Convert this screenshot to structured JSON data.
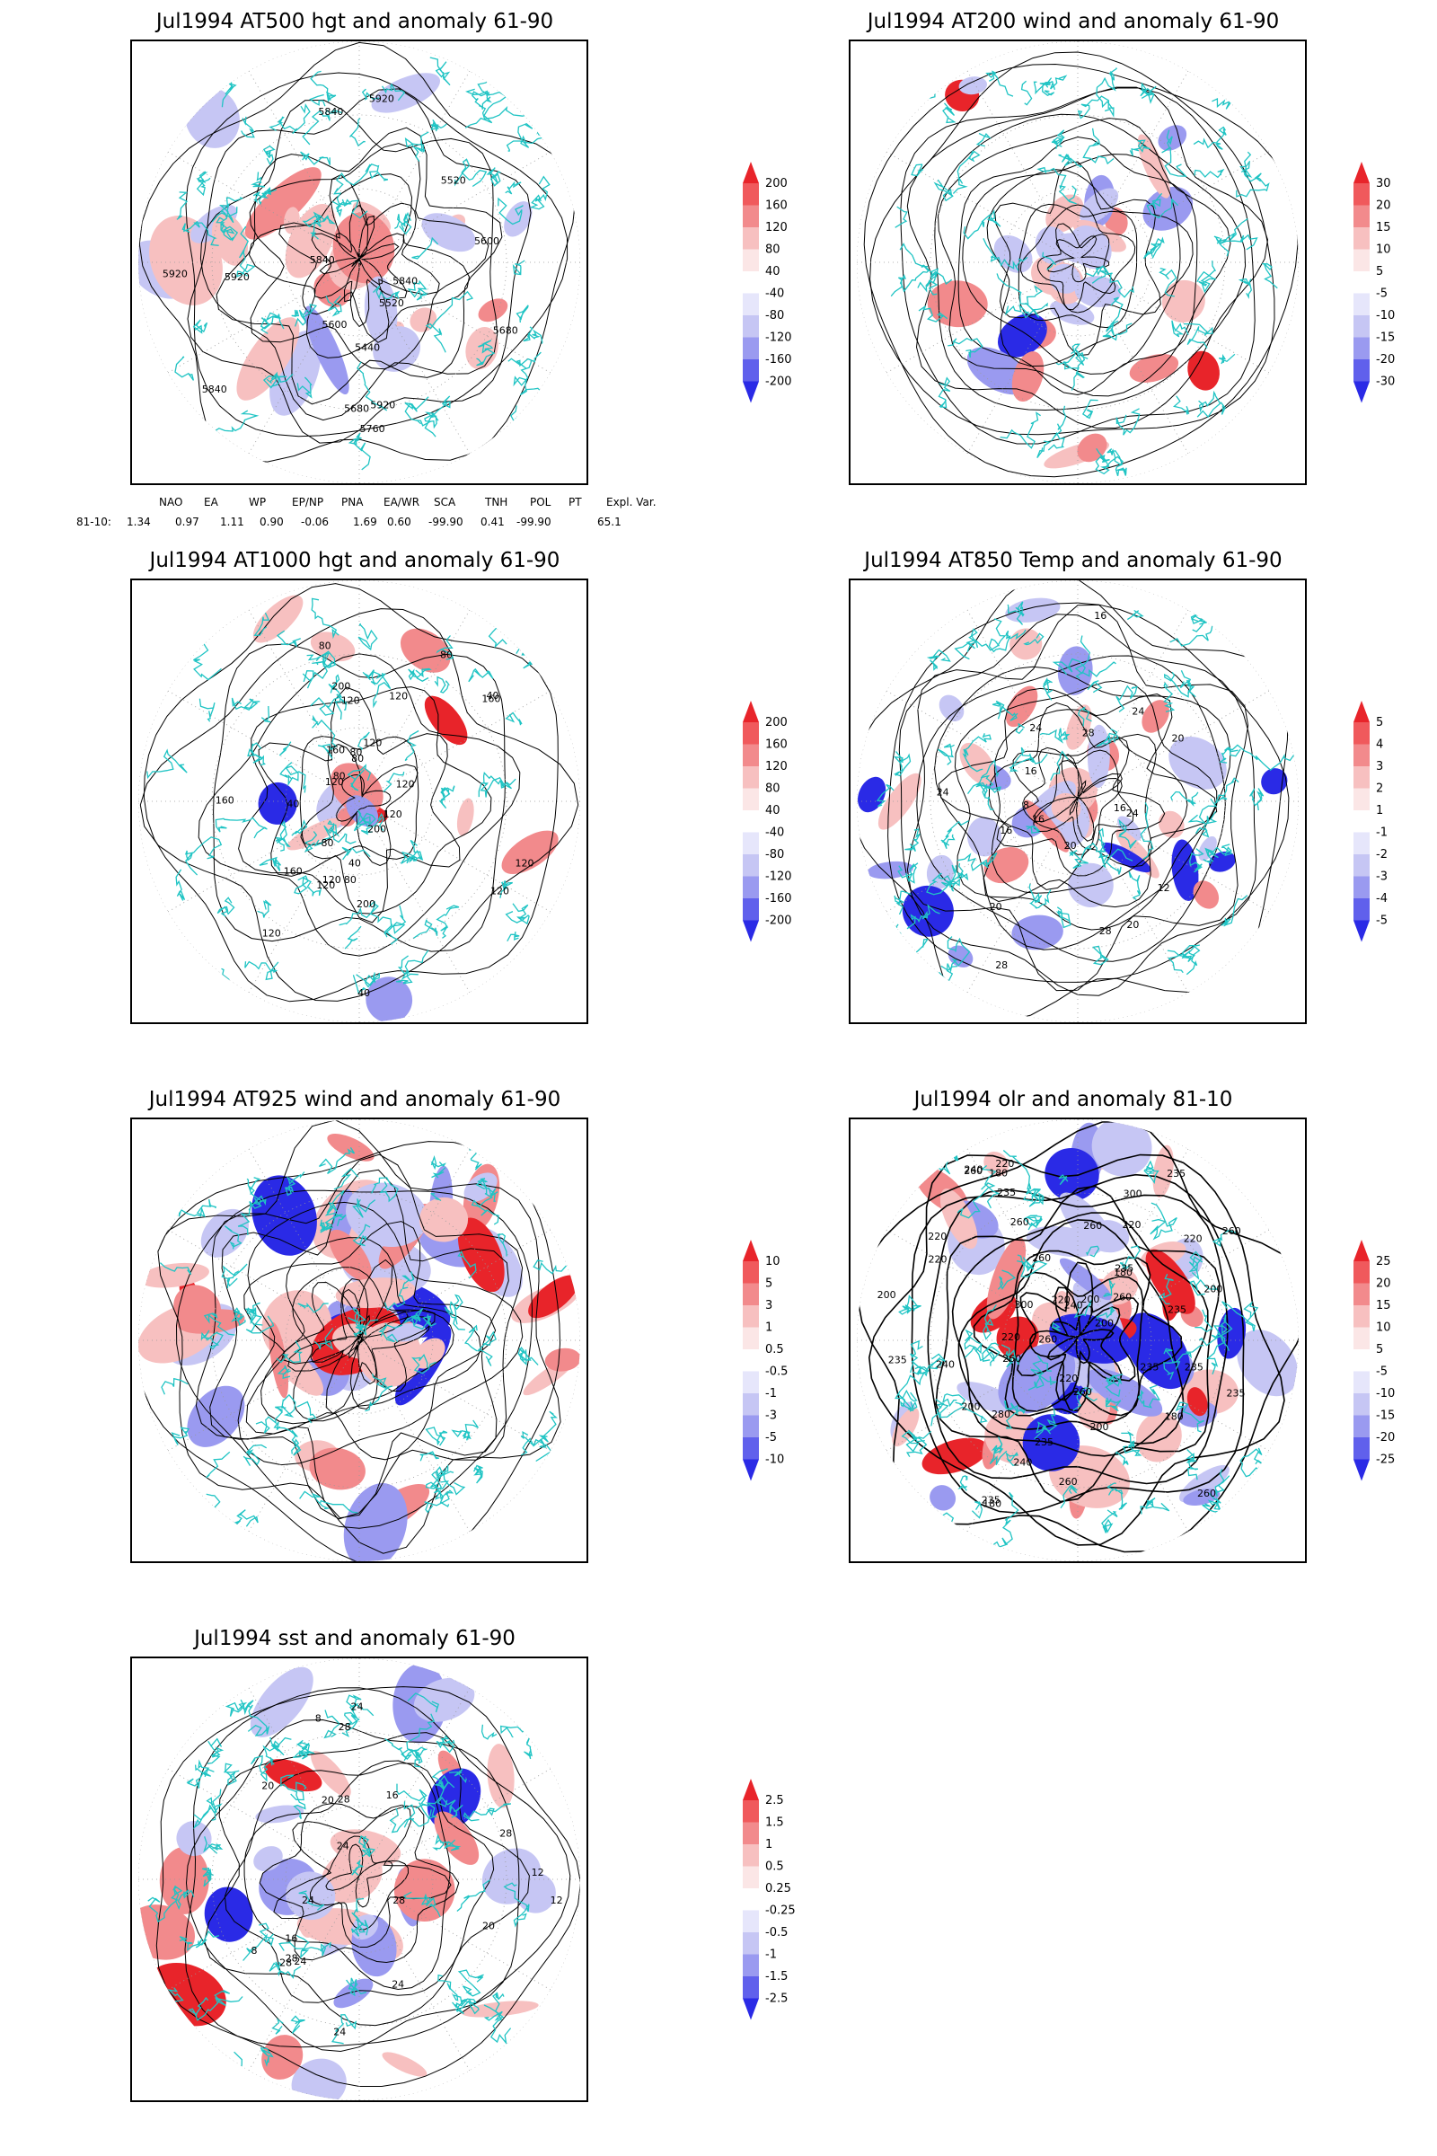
{
  "chart_data": [
    {
      "type": "heatmap",
      "title": "Jul1994 AT500 hgt and anomaly 61-90",
      "colorbar": [
        200,
        160,
        120,
        80,
        40,
        -40,
        -80,
        -120,
        -160,
        -200
      ],
      "contour_labels": [
        "5840",
        "5840",
        "5920",
        "5520",
        "5680",
        "5440",
        "5600",
        "5520",
        "5600",
        "5680",
        "5760",
        "5920",
        "5840",
        "5920",
        "5840",
        "5920"
      ],
      "indices": {
        "row_label": "81-10:",
        "names": [
          "NAO",
          "EA",
          "WP",
          "EP/NP",
          "PNA",
          "EA/WR",
          "SCA",
          "TNH",
          "POL",
          "PT",
          "Expl. Var."
        ],
        "values": [
          "1.34",
          "0.97",
          "1.11",
          "0.90",
          "-0.06",
          "1.69",
          "0.60",
          "-99.90",
          "0.41",
          "-99.90",
          "65.1"
        ]
      }
    },
    {
      "type": "heatmap",
      "title": "Jul1994 AT200 wind and anomaly 61-90",
      "colorbar": [
        30,
        20,
        15,
        10,
        5,
        -5,
        -10,
        -15,
        -20,
        -30
      ],
      "contour_labels": []
    },
    {
      "type": "heatmap",
      "title": "Jul1994 AT1000 hgt and anomaly 61-90",
      "colorbar": [
        200,
        160,
        120,
        80,
        40,
        -40,
        -80,
        -120,
        -160,
        -200
      ],
      "contour_labels": [
        "80",
        "120",
        "120",
        "160",
        "200",
        "80",
        "80",
        "120",
        "200",
        "120",
        "80",
        "160",
        "120",
        "40",
        "40",
        "120",
        "40",
        "80",
        "40",
        "200",
        "160",
        "120",
        "120",
        "160",
        "80",
        "120",
        "80",
        "120",
        "120"
      ]
    },
    {
      "type": "heatmap",
      "title": "Jul1994 AT850 Temp and anomaly 61-90",
      "colorbar": [
        5,
        4,
        3,
        2,
        1,
        -1,
        -2,
        -3,
        -4,
        -5
      ],
      "contour_labels": [
        "16",
        "16",
        "20",
        "20",
        "24",
        "12",
        "8",
        "24",
        "28",
        "24",
        "28",
        "16",
        "16",
        "20",
        "28",
        "24",
        "20",
        "16"
      ]
    },
    {
      "type": "heatmap",
      "title": "Jul1994 AT925 wind and anomaly 61-90",
      "colorbar": [
        10,
        5,
        3,
        1,
        0.5,
        -0.5,
        -1,
        -3,
        -5,
        -10
      ],
      "contour_labels": []
    },
    {
      "type": "heatmap",
      "title": "Jul1994 olr and anomaly 81-10",
      "colorbar": [
        25,
        20,
        15,
        10,
        5,
        -5,
        -10,
        -15,
        -20,
        -25
      ],
      "contour_labels": [
        "260",
        "240",
        "235",
        "260",
        "235",
        "220",
        "200",
        "180",
        "260",
        "235",
        "220",
        "260",
        "200",
        "180",
        "240",
        "220",
        "235",
        "235",
        "200",
        "260",
        "220",
        "180",
        "260",
        "235",
        "240",
        "235",
        "180",
        "220",
        "200",
        "260",
        "300",
        "235",
        "260",
        "300",
        "240",
        "220",
        "260",
        "235",
        "200",
        "280",
        "220",
        "260",
        "235",
        "200",
        "260",
        "220"
      ]
    },
    {
      "type": "heatmap",
      "title": "Jul1994 sst and anomaly 61-90",
      "colorbar": [
        2.5,
        1.5,
        1,
        0.5,
        0.25,
        -0.25,
        -0.5,
        -1,
        -1.5,
        -2.5
      ],
      "contour_labels": [
        "28",
        "28",
        "24",
        "24",
        "20",
        "20",
        "16",
        "12",
        "8",
        "24",
        "28",
        "28",
        "12",
        "8",
        "16",
        "20",
        "28",
        "24",
        "24",
        "28",
        "24"
      ]
    }
  ],
  "colors": {
    "coast": "#20c4c4",
    "contour": "#000000",
    "pos_fill": "#f08080",
    "neg_fill": "#8080f0"
  }
}
